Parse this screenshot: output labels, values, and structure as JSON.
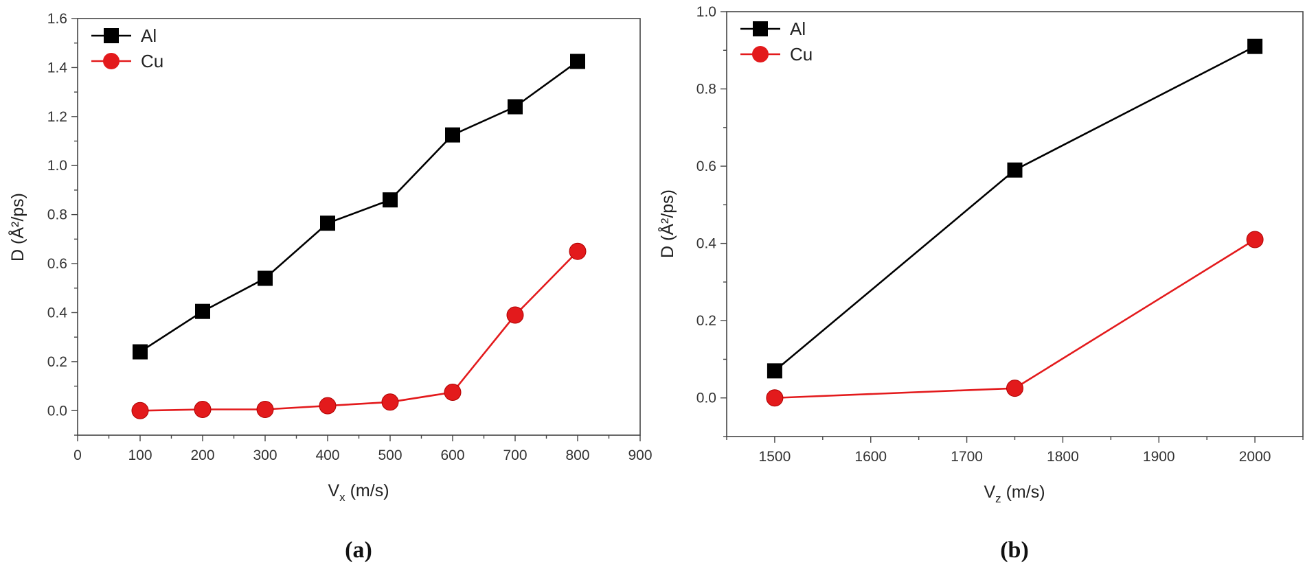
{
  "chart_data": [
    {
      "panel_label": "(a)",
      "type": "line",
      "xlabel": "V",
      "xlabel_sub": "x",
      "xlabel_unit": " (m/s)",
      "ylabel": "D (Å²/ps)",
      "xlim": [
        0,
        900
      ],
      "ylim": [
        -0.1,
        1.6
      ],
      "xticks": [
        "0",
        "100",
        "200",
        "300",
        "400",
        "500",
        "600",
        "700",
        "800",
        "900"
      ],
      "yticks": [
        "0.0",
        "0.2",
        "0.4",
        "0.6",
        "0.8",
        "1.0",
        "1.2",
        "1.4",
        "1.6"
      ],
      "legend_position": "top-left",
      "grid": false,
      "x": [
        100,
        200,
        300,
        400,
        500,
        600,
        700,
        800
      ],
      "series": [
        {
          "name": "Al",
          "color": "#000000",
          "marker": "square",
          "values": [
            0.24,
            0.405,
            0.54,
            0.765,
            0.86,
            1.125,
            1.24,
            1.425
          ]
        },
        {
          "name": "Cu",
          "color": "#e31a1c",
          "marker": "circle",
          "values": [
            0.0,
            0.005,
            0.005,
            0.02,
            0.035,
            0.075,
            0.39,
            0.65
          ]
        }
      ]
    },
    {
      "panel_label": "(b)",
      "type": "line",
      "xlabel": "V",
      "xlabel_sub": "z",
      "xlabel_unit": " (m/s)",
      "ylabel": "D (Å²/ps)",
      "xlim": [
        1450,
        2050
      ],
      "ylim": [
        -0.1,
        1.0
      ],
      "xticks": [
        "1500",
        "1600",
        "1700",
        "1800",
        "1900",
        "2000"
      ],
      "yticks": [
        "0.0",
        "0.2",
        "0.4",
        "0.6",
        "0.8",
        "1.0"
      ],
      "legend_position": "top-left",
      "grid": false,
      "x": [
        1500,
        1750,
        2000
      ],
      "series": [
        {
          "name": "Al",
          "color": "#000000",
          "marker": "square",
          "values": [
            0.07,
            0.59,
            0.91
          ]
        },
        {
          "name": "Cu",
          "color": "#e31a1c",
          "marker": "circle",
          "values": [
            0.0,
            0.025,
            0.41
          ]
        }
      ]
    }
  ]
}
